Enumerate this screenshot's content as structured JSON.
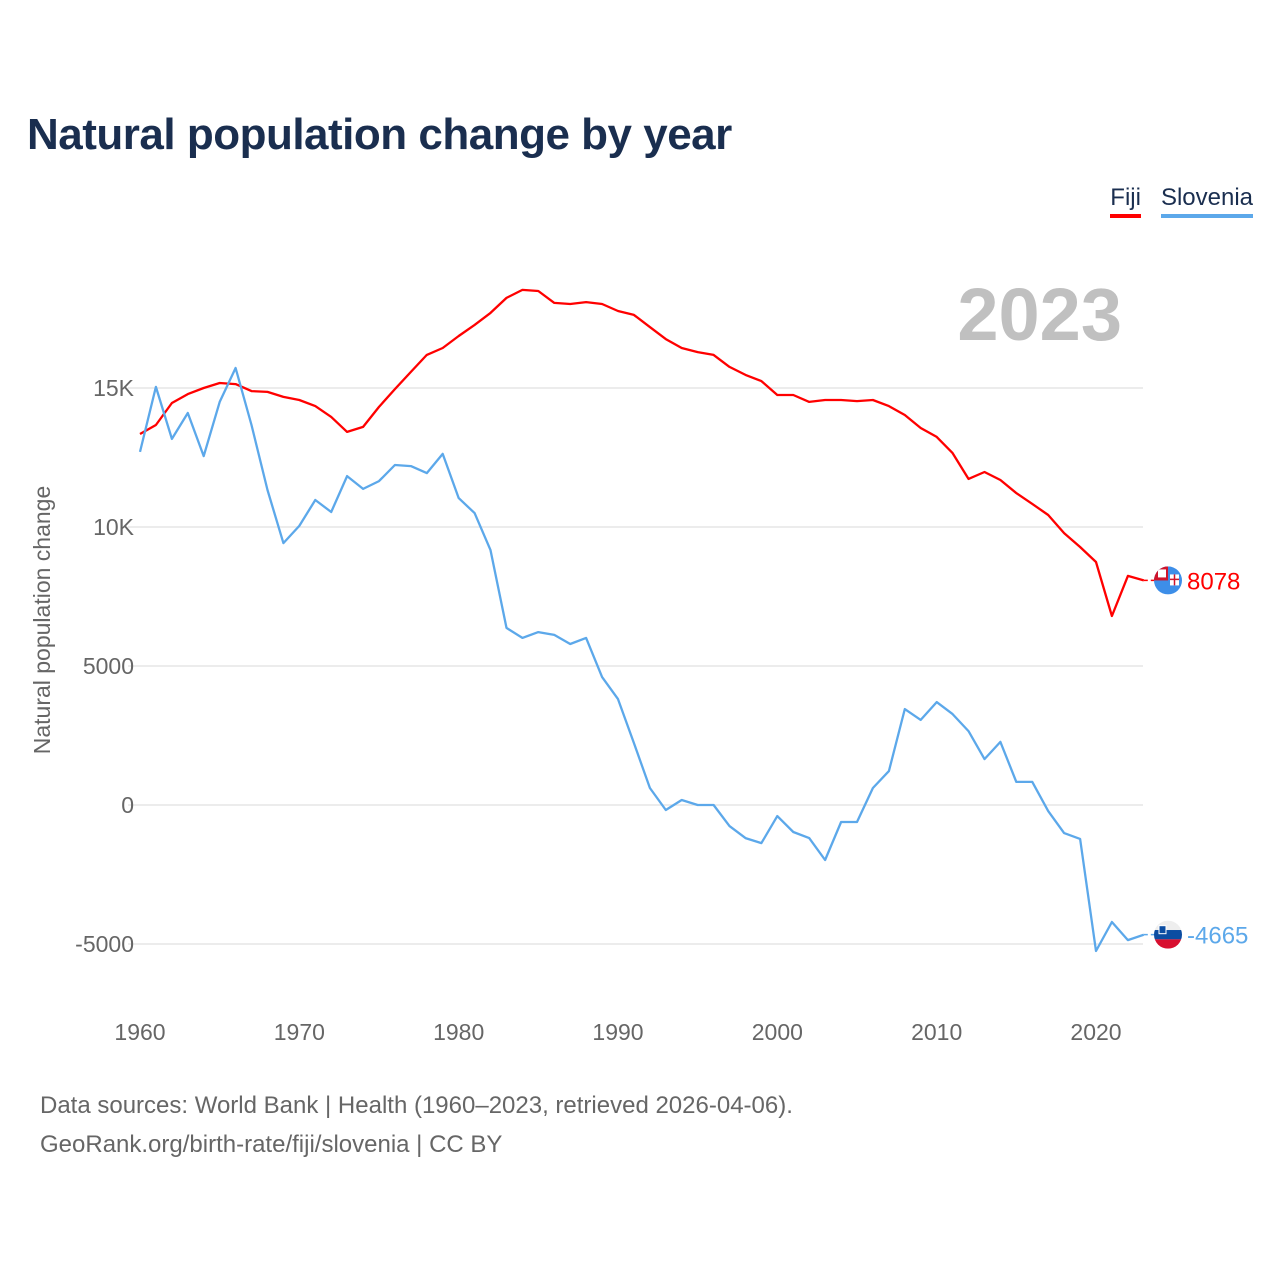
{
  "title": "Natural population change by year",
  "year_label": "2023",
  "footer": {
    "line1": "Data sources: World Bank | Health (1960–2023, retrieved 2026-04-06).",
    "line2": "GeoRank.org/birth-rate/fiji/slovenia | CC BY"
  },
  "chart_data": {
    "type": "line",
    "title": "Natural population change by year",
    "xlabel": "",
    "ylabel": "Natural population change",
    "xlim": [
      1960,
      2023
    ],
    "ylim": [
      -5000,
      18500
    ],
    "x_ticks": [
      1960,
      1970,
      1980,
      1990,
      2000,
      2010,
      2020
    ],
    "y_ticks": [
      {
        "v": 15000,
        "label": "15K"
      },
      {
        "v": 10000,
        "label": "10K"
      },
      {
        "v": 5000,
        "label": "5000"
      },
      {
        "v": 0,
        "label": "0"
      },
      {
        "v": -5000,
        "label": "-5000"
      }
    ],
    "grid": true,
    "legend_position": "top-right",
    "x_start": 1960,
    "series": [
      {
        "name": "Fiji",
        "color": "#ff0000",
        "end_label": "8078",
        "flag_icon": "fiji-flag-icon",
        "values": [
          13345,
          13670,
          14460,
          14780,
          15000,
          15180,
          15140,
          14890,
          14860,
          14680,
          14570,
          14350,
          13960,
          13420,
          13600,
          14320,
          14960,
          15580,
          16190,
          16440,
          16870,
          17270,
          17700,
          18240,
          18530,
          18490,
          18060,
          18020,
          18090,
          18020,
          17770,
          17630,
          17190,
          16760,
          16440,
          16290,
          16190,
          15760,
          15470,
          15250,
          14750,
          14750,
          14500,
          14570,
          14570,
          14530,
          14570,
          14350,
          14030,
          13560,
          13240,
          12660,
          11730,
          11980,
          11690,
          11220,
          10830,
          10430,
          9780,
          9280,
          8740,
          6800,
          8240,
          8078
        ]
      },
      {
        "name": "Slovenia",
        "color": "#5ca8ea",
        "end_label": "-4665",
        "flag_icon": "slovenia-flag-icon",
        "values": [
          12700,
          15040,
          13170,
          14100,
          12550,
          14500,
          15720,
          13670,
          11330,
          9420,
          10040,
          10970,
          10540,
          11830,
          11370,
          11650,
          12230,
          12190,
          11940,
          12630,
          11040,
          10500,
          9170,
          6370,
          6010,
          6220,
          6120,
          5790,
          6010,
          4600,
          3810,
          2230,
          610,
          -180,
          180,
          0,
          0,
          -760,
          -1190,
          -1370,
          -400,
          -970,
          -1190,
          -1980,
          -610,
          -610,
          610,
          1220,
          3450,
          3060,
          3700,
          3270,
          2660,
          1650,
          2270,
          830,
          830,
          -220,
          -1010,
          -1220,
          -5250,
          -4210,
          -4860,
          -4665
        ]
      }
    ]
  }
}
